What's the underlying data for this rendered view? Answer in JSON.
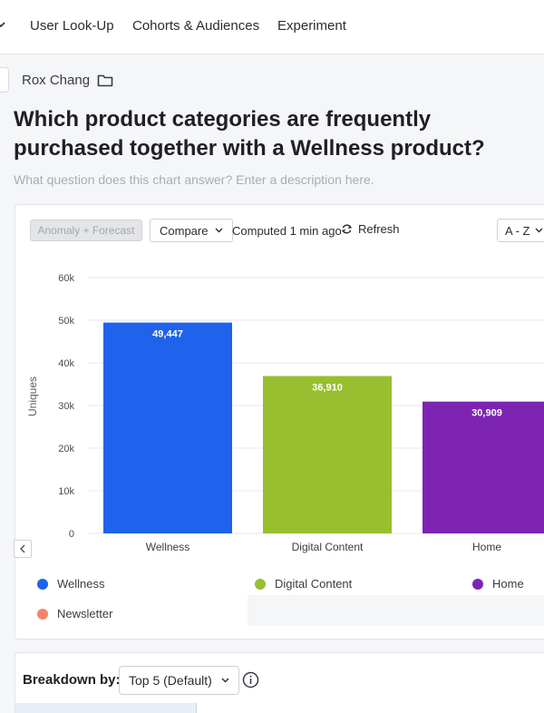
{
  "nav": {
    "items": [
      "User Look-Up",
      "Cohorts & Audiences",
      "Experiment"
    ]
  },
  "owner": {
    "name": "Rox Chang",
    "icon": "folder-icon"
  },
  "chart_title": "Which product categories are frequently purchased together with a Wellness product?",
  "description_placeholder": "What question does this chart answer? Enter a description here.",
  "toolbar": {
    "anomaly_label": "Anomaly + Forecast",
    "compare_label": "Compare",
    "computed_label": "Computed 1 min ago",
    "refresh_label": "Refresh",
    "sort_label": "A - Z"
  },
  "colors": {
    "Wellness": "#1f63ec",
    "Digital Content": "#97bf30",
    "Home": "#7d24b2",
    "Newsletter": "#f4836f"
  },
  "chart_data": {
    "type": "bar",
    "categories": [
      "Wellness",
      "Digital Content",
      "Home"
    ],
    "values": [
      49447,
      36910,
      30909
    ],
    "data_labels": [
      "49,447",
      "36,910",
      "30,909"
    ],
    "ylabel": "Uniques",
    "ylim": [
      0,
      60000
    ],
    "yticks": [
      "0",
      "10k",
      "20k",
      "30k",
      "40k",
      "50k",
      "60k"
    ],
    "grid": true
  },
  "legend": {
    "items": [
      "Wellness",
      "Digital Content",
      "Home",
      "Newsletter"
    ]
  },
  "breakdown": {
    "label": "Breakdown by:",
    "selected": "Top 5 (Default)"
  }
}
